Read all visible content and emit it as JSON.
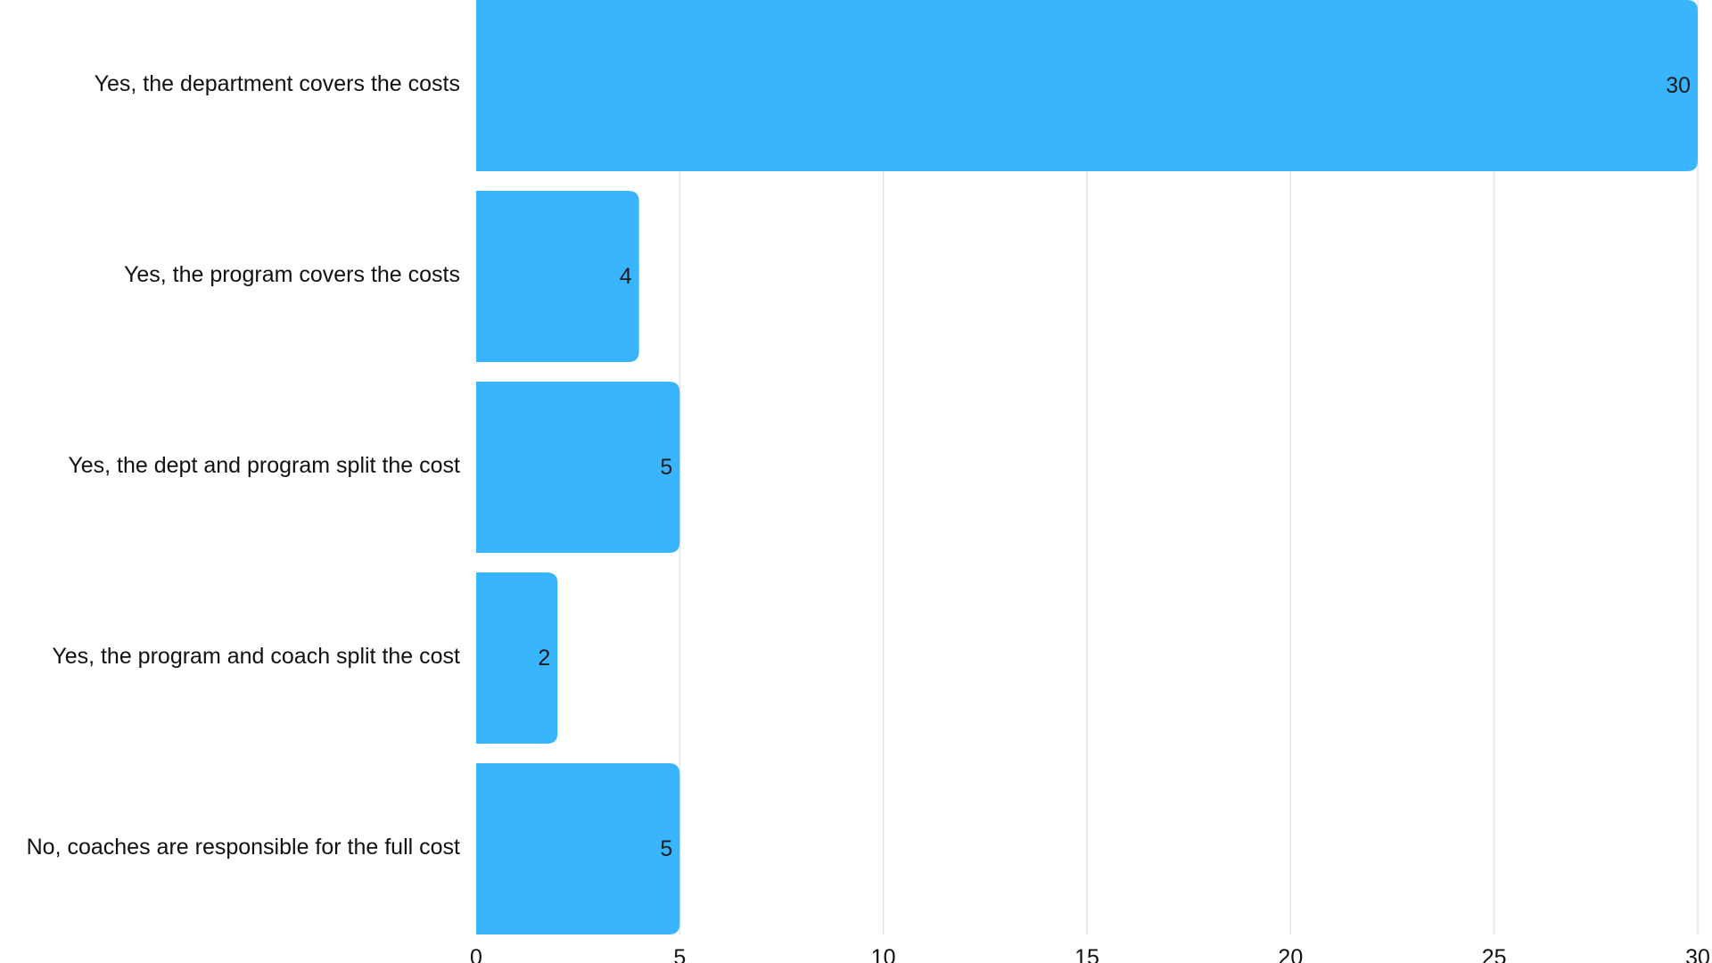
{
  "chart_data": {
    "type": "bar",
    "orientation": "horizontal",
    "categories": [
      "Yes, the department covers the costs",
      "Yes, the program covers the costs",
      "Yes, the dept and program split the cost",
      "Yes, the program and coach split the cost",
      "No, coaches are responsible for the full cost"
    ],
    "values": [
      30,
      4,
      5,
      2,
      5
    ],
    "xlim": [
      0,
      30
    ],
    "xticks": [
      0,
      5,
      10,
      15,
      20,
      25,
      30
    ],
    "title": "",
    "xlabel": "",
    "ylabel": "",
    "grid": "vertical",
    "data_labels": true,
    "bar_color": "#39b5fd",
    "grid_color": "#e1e4e8"
  }
}
